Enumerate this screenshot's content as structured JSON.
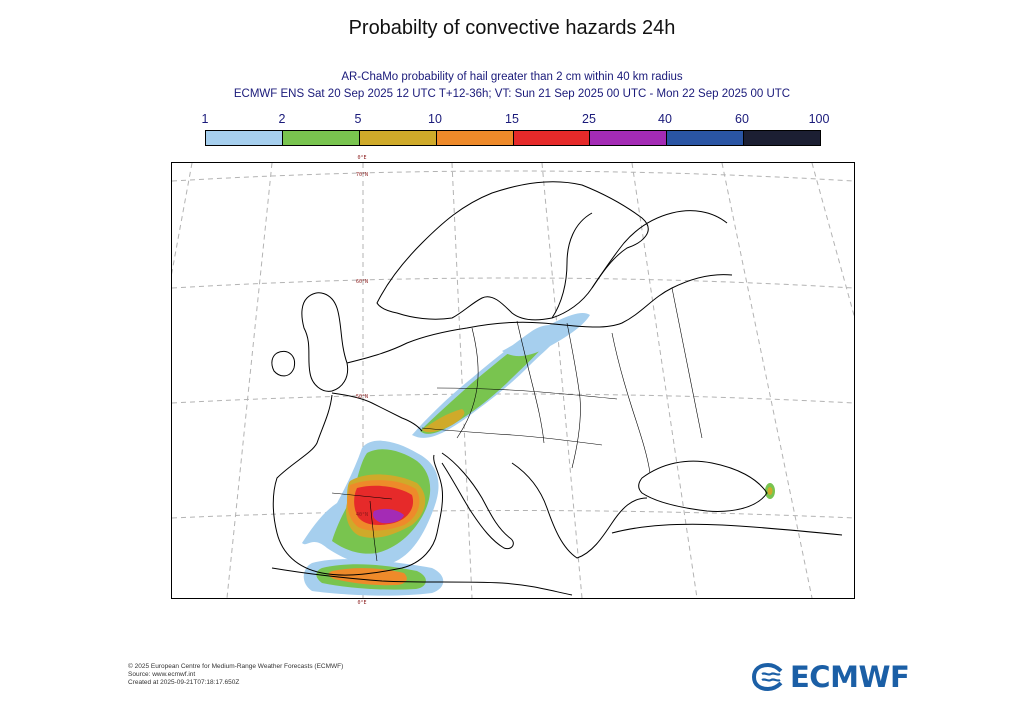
{
  "header": {
    "title": "Probabilty of convective hazards 24h",
    "subtitle1": "AR-ChaMo probability of hail greater than 2 cm within 40 km radius",
    "subtitle2": "ECMWF ENS Sat 20 Sep 2025 12 UTC T+12-36h; VT: Sun 21 Sep 2025 00 UTC - Mon 22 Sep 2025 00 UTC"
  },
  "legend": {
    "ticks": [
      "1",
      "2",
      "5",
      "10",
      "15",
      "25",
      "40",
      "60",
      "100"
    ],
    "colors": [
      "#a6cfee",
      "#79c44f",
      "#cfaa2a",
      "#ee8a2a",
      "#e62a2a",
      "#a42bb5",
      "#2a55a4",
      "#1c1f33"
    ]
  },
  "map": {
    "lon_label_top": "0°E",
    "lon_label_bottom": "0°E",
    "lat_labels": [
      "70°N",
      "60°N",
      "50°N",
      "40°N"
    ]
  },
  "footer": {
    "line1": "© 2025 European Centre for Medium-Range Weather Forecasts (ECMWF)",
    "line2": "Source: www.ecmwf.int",
    "line3": "Created at 2025-09-21T07:18:17.650Z"
  },
  "logo": {
    "text": "ECMWF"
  }
}
